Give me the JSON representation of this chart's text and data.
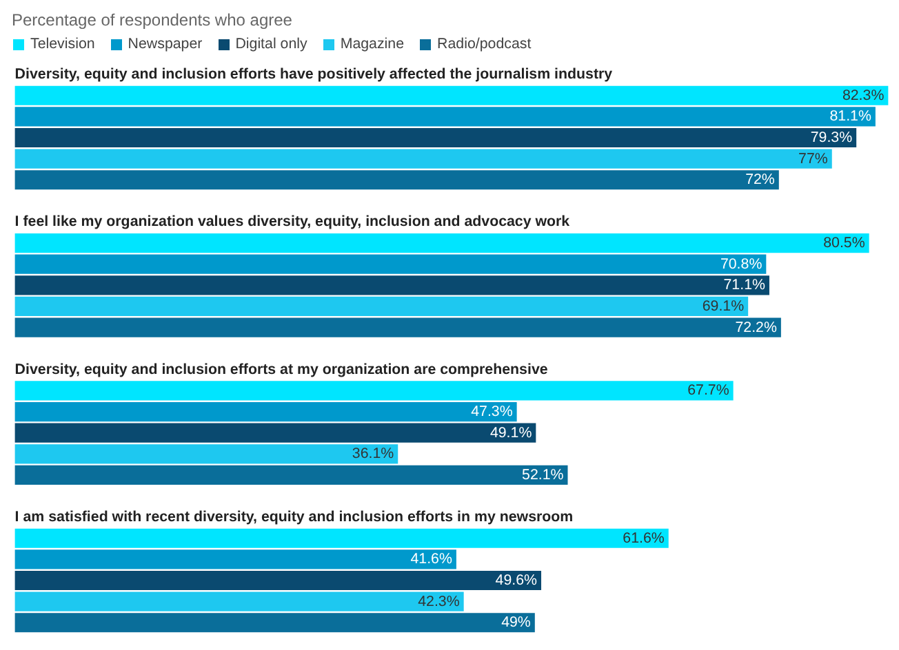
{
  "chart_data": {
    "type": "bar",
    "orientation": "horizontal",
    "subtitle": "Percentage of respondents who agree",
    "categories": [
      "Diversity, equity and inclusion efforts have positively affected the journalism industry",
      "I feel like my organization values diversity, equity, inclusion and advocacy work",
      "Diversity, equity and inclusion efforts at my organization are comprehensive",
      "I am satisfied with recent diversity, equity and inclusion efforts in my newsroom"
    ],
    "series": [
      {
        "name": "Television",
        "color": "#00e5ff",
        "values": [
          82.3,
          80.5,
          67.7,
          61.6
        ],
        "value_labels": [
          "82.3%",
          "80.5%",
          "67.7%",
          "61.6%"
        ]
      },
      {
        "name": "Newspaper",
        "color": "#0099cc",
        "values": [
          81.1,
          70.8,
          47.3,
          41.6
        ],
        "value_labels": [
          "81.1%",
          "70.8%",
          "47.3%",
          "41.6%"
        ]
      },
      {
        "name": "Digital only",
        "color": "#0a4a70",
        "values": [
          79.3,
          71.1,
          49.1,
          49.6
        ],
        "value_labels": [
          "79.3%",
          "71.1%",
          "49.1%",
          "49.6%"
        ]
      },
      {
        "name": "Magazine",
        "color": "#1ec8f0",
        "values": [
          77,
          69.1,
          36.1,
          42.3
        ],
        "value_labels": [
          "77%",
          "69.1%",
          "36.1%",
          "42.3%"
        ]
      },
      {
        "name": "Radio/podcast",
        "color": "#0a6e9a",
        "values": [
          72,
          72.2,
          52.1,
          49
        ],
        "value_labels": [
          "72%",
          "72.2%",
          "52.1%",
          "49%"
        ]
      }
    ],
    "legend": "top left",
    "grid": false
  }
}
